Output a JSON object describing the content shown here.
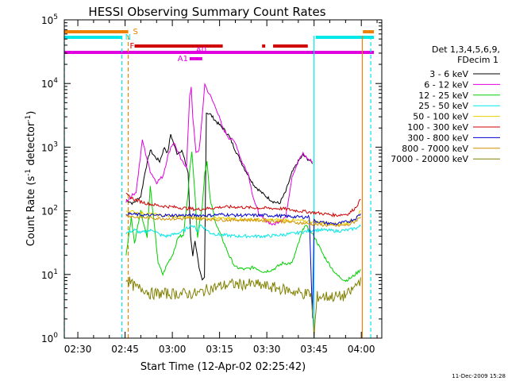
{
  "chart_data": {
    "type": "line",
    "title": "HESSI Observing Summary Count Rates",
    "xlabel": "Start Time (12-Apr-02 02:25:42)",
    "ylabel_main": "Count Rate (s",
    "ylabel_sup1": "-1",
    "ylabel_mid": " detector",
    "ylabel_sup2": "-1",
    "ylabel_end": ")",
    "yscale": "log",
    "ylim_exp": [
      0,
      5
    ],
    "ytick_exps": [
      0,
      1,
      2,
      3,
      4,
      5
    ],
    "ytick_base": "10",
    "xlim_min": [
      25.7,
      126.5
    ],
    "xticks": [
      {
        "min": 30,
        "label": "02:30"
      },
      {
        "min": 45,
        "label": "02:45"
      },
      {
        "min": 60,
        "label": "03:00"
      },
      {
        "min": 75,
        "label": "03:15"
      },
      {
        "min": 90,
        "label": "03:30"
      },
      {
        "min": 105,
        "label": "03:45"
      },
      {
        "min": 120,
        "label": "04:00"
      }
    ],
    "legend_title_1": "Det 1,3,4,5,6,9,",
    "legend_title_2": "FDecim 1",
    "legend_placement": "right",
    "series": [
      {
        "name": "3 - 6 keV",
        "color": "#000000",
        "points": [
          [
            45.3,
            150
          ],
          [
            47.5,
            130
          ],
          [
            50,
            170
          ],
          [
            51.5,
            450
          ],
          [
            53,
            900
          ],
          [
            54.5,
            700
          ],
          [
            56,
            600
          ],
          [
            57.5,
            1000
          ],
          [
            58.5,
            800
          ],
          [
            59.5,
            1600
          ],
          [
            60.5,
            1100
          ],
          [
            61.5,
            800
          ],
          [
            63,
            900
          ],
          [
            65,
            400
          ],
          [
            65.8,
            40
          ],
          [
            66.5,
            20
          ],
          [
            67.2,
            35
          ],
          [
            68.5,
            12
          ],
          [
            69.5,
            8
          ],
          [
            70.2,
            9
          ],
          [
            70.8,
            3500
          ],
          [
            72,
            3300
          ],
          [
            74,
            2500
          ],
          [
            76,
            2000
          ],
          [
            78,
            1500
          ],
          [
            80,
            900
          ],
          [
            83,
            450
          ],
          [
            86,
            250
          ],
          [
            89,
            180
          ],
          [
            92,
            140
          ],
          [
            94,
            130
          ],
          [
            96,
            200
          ],
          [
            98,
            400
          ],
          [
            100,
            600
          ],
          [
            101.5,
            750
          ],
          [
            103.5,
            620
          ],
          [
            104.5,
            550
          ]
        ]
      },
      {
        "name": "6 - 12 keV",
        "color": "#e000e0",
        "points": [
          [
            45.3,
            140
          ],
          [
            47,
            170
          ],
          [
            48.5,
            200
          ],
          [
            49.5,
            500
          ],
          [
            50.5,
            1300
          ],
          [
            51.5,
            800
          ],
          [
            53,
            420
          ],
          [
            55,
            280
          ],
          [
            57,
            350
          ],
          [
            58.5,
            700
          ],
          [
            59.5,
            1000
          ],
          [
            60.5,
            1200
          ],
          [
            61.5,
            900
          ],
          [
            63,
            600
          ],
          [
            64.5,
            500
          ],
          [
            65.5,
            6000
          ],
          [
            66,
            9000
          ],
          [
            66.5,
            3000
          ],
          [
            67.5,
            800
          ],
          [
            68.5,
            900
          ],
          [
            69.5,
            3000
          ],
          [
            70.3,
            10000
          ],
          [
            71,
            8000
          ],
          [
            72,
            6500
          ],
          [
            73,
            5000
          ],
          [
            74,
            4000
          ],
          [
            76,
            2000
          ],
          [
            78,
            1400
          ],
          [
            80,
            1200
          ],
          [
            82,
            600
          ],
          [
            84,
            400
          ],
          [
            85.5,
            180
          ],
          [
            86.5,
            120
          ],
          [
            88,
            80
          ],
          [
            92,
            60
          ],
          [
            96,
            80
          ],
          [
            98,
            350
          ],
          [
            100,
            600
          ],
          [
            101.5,
            800
          ],
          [
            103,
            650
          ],
          [
            104.5,
            600
          ]
        ]
      },
      {
        "name": "12 - 25 keV",
        "color": "#00d000",
        "points": [
          [
            45.3,
            20
          ],
          [
            47,
            80
          ],
          [
            48,
            30
          ],
          [
            49,
            60
          ],
          [
            50,
            100
          ],
          [
            51,
            60
          ],
          [
            52,
            40
          ],
          [
            53,
            240
          ],
          [
            54,
            80
          ],
          [
            55.5,
            15
          ],
          [
            57,
            10
          ],
          [
            58.5,
            15
          ],
          [
            60,
            20
          ],
          [
            62,
            40
          ],
          [
            63.5,
            40
          ],
          [
            65,
            200
          ],
          [
            65.5,
            400
          ],
          [
            66.2,
            900
          ],
          [
            67,
            250
          ],
          [
            68,
            40
          ],
          [
            69.5,
            120
          ],
          [
            70.3,
            400
          ],
          [
            71,
            600
          ],
          [
            72,
            150
          ],
          [
            74,
            60
          ],
          [
            76,
            35
          ],
          [
            78,
            20
          ],
          [
            80,
            13
          ],
          [
            83,
            12
          ],
          [
            86,
            13
          ],
          [
            89,
            11
          ],
          [
            92,
            12
          ],
          [
            95,
            15
          ],
          [
            98,
            15
          ],
          [
            100,
            30
          ],
          [
            102,
            60
          ],
          [
            103.5,
            50
          ],
          [
            105,
            40
          ],
          [
            108,
            20
          ],
          [
            112,
            10
          ],
          [
            115,
            8
          ],
          [
            117,
            9
          ],
          [
            118,
            10
          ],
          [
            119,
            11
          ],
          [
            119.8,
            12
          ]
        ]
      },
      {
        "name": "25 - 50 keV",
        "color": "#00e8e8",
        "points": [
          [
            45.3,
            45
          ],
          [
            48,
            50
          ],
          [
            50,
            45
          ],
          [
            52,
            48
          ],
          [
            54,
            50
          ],
          [
            56,
            42
          ],
          [
            58,
            40
          ],
          [
            60,
            42
          ],
          [
            62,
            45
          ],
          [
            64,
            50
          ],
          [
            66,
            60
          ],
          [
            67,
            55
          ],
          [
            68,
            48
          ],
          [
            69,
            60
          ],
          [
            70,
            55
          ],
          [
            72,
            45
          ],
          [
            75,
            42
          ],
          [
            80,
            40
          ],
          [
            85,
            40
          ],
          [
            90,
            40
          ],
          [
            95,
            42
          ],
          [
            100,
            45
          ],
          [
            103,
            48
          ],
          [
            105,
            50
          ],
          [
            108,
            50
          ],
          [
            112,
            48
          ],
          [
            116,
            50
          ],
          [
            119,
            55
          ],
          [
            119.8,
            58
          ]
        ]
      },
      {
        "name": "50 - 100 keV",
        "color": "#e8d000",
        "points": [
          [
            45.3,
            100
          ],
          [
            48,
            95
          ],
          [
            52,
            90
          ],
          [
            56,
            85
          ],
          [
            60,
            82
          ],
          [
            64,
            80
          ],
          [
            68,
            80
          ],
          [
            72,
            78
          ],
          [
            76,
            75
          ],
          [
            80,
            75
          ],
          [
            85,
            73
          ],
          [
            90,
            72
          ],
          [
            95,
            72
          ],
          [
            100,
            70
          ],
          [
            104,
            68
          ],
          [
            108,
            65
          ],
          [
            112,
            62
          ],
          [
            116,
            65
          ],
          [
            118,
            75
          ],
          [
            119.8,
            100
          ]
        ]
      },
      {
        "name": "100 - 300 keV",
        "color": "#d00000",
        "points": [
          [
            45.3,
            180
          ],
          [
            48,
            150
          ],
          [
            52,
            130
          ],
          [
            56,
            120
          ],
          [
            60,
            115
          ],
          [
            64,
            110
          ],
          [
            68,
            105
          ],
          [
            72,
            110
          ],
          [
            76,
            115
          ],
          [
            80,
            115
          ],
          [
            85,
            112
          ],
          [
            90,
            110
          ],
          [
            95,
            108
          ],
          [
            100,
            100
          ],
          [
            104,
            95
          ],
          [
            108,
            90
          ],
          [
            112,
            85
          ],
          [
            116,
            90
          ],
          [
            118,
            110
          ],
          [
            119.8,
            150
          ]
        ]
      },
      {
        "name": "300 - 800 keV",
        "color": "#0000d0",
        "points": [
          [
            45.3,
            90
          ],
          [
            48,
            88
          ],
          [
            52,
            85
          ],
          [
            56,
            85
          ],
          [
            60,
            85
          ],
          [
            64,
            85
          ],
          [
            68,
            85
          ],
          [
            72,
            85
          ],
          [
            76,
            88
          ],
          [
            80,
            85
          ],
          [
            85,
            85
          ],
          [
            90,
            85
          ],
          [
            95,
            83
          ],
          [
            100,
            80
          ],
          [
            103.5,
            80
          ],
          [
            104.5,
            2
          ],
          [
            105,
            70
          ],
          [
            108,
            65
          ],
          [
            112,
            62
          ],
          [
            116,
            68
          ],
          [
            118,
            75
          ],
          [
            119.8,
            90
          ]
        ]
      },
      {
        "name": "800 - 7000 keV",
        "color": "#d09000",
        "points": [
          [
            45.3,
            85
          ],
          [
            48,
            80
          ],
          [
            52,
            78
          ],
          [
            56,
            76
          ],
          [
            60,
            75
          ],
          [
            64,
            75
          ],
          [
            68,
            75
          ],
          [
            72,
            74
          ],
          [
            76,
            72
          ],
          [
            80,
            72
          ],
          [
            85,
            72
          ],
          [
            90,
            70
          ],
          [
            95,
            68
          ],
          [
            100,
            65
          ],
          [
            104,
            62
          ],
          [
            108,
            60
          ],
          [
            112,
            58
          ],
          [
            116,
            60
          ],
          [
            118,
            68
          ],
          [
            119.8,
            80
          ]
        ]
      },
      {
        "name": "7000 - 20000 keV",
        "color": "#808000",
        "points": [
          [
            45.3,
            9
          ],
          [
            47,
            7
          ],
          [
            49,
            6
          ],
          [
            51,
            6
          ],
          [
            53,
            5
          ],
          [
            55,
            5
          ],
          [
            57,
            5
          ],
          [
            60,
            5
          ],
          [
            63,
            5
          ],
          [
            66,
            5
          ],
          [
            68,
            5
          ],
          [
            70,
            5.5
          ],
          [
            72,
            6
          ],
          [
            75,
            6.5
          ],
          [
            78,
            7
          ],
          [
            82,
            7
          ],
          [
            86,
            7
          ],
          [
            90,
            6.5
          ],
          [
            94,
            6
          ],
          [
            98,
            5.5
          ],
          [
            101,
            5
          ],
          [
            104,
            5
          ],
          [
            105,
            1.1
          ],
          [
            106,
            4.5
          ],
          [
            108,
            4.5
          ],
          [
            111,
            4.5
          ],
          [
            114,
            4.5
          ],
          [
            116,
            5
          ],
          [
            117.5,
            6
          ],
          [
            118.5,
            7
          ],
          [
            119.5,
            8
          ],
          [
            119.8,
            9
          ]
        ]
      }
    ],
    "flag_bars": [
      {
        "label": "S",
        "color": "#f08000",
        "row": "S",
        "segments": [
          [
            25.7,
            46
          ],
          [
            120.5,
            124
          ]
        ]
      },
      {
        "label": "N",
        "color": "#00e8e8",
        "row": "N",
        "segments": [
          [
            25.7,
            44
          ],
          [
            105.5,
            124
          ]
        ]
      },
      {
        "label": "F",
        "color": "#d00000",
        "row": "F",
        "segments": [
          [
            48,
            76
          ],
          [
            88.5,
            89.5
          ],
          [
            92,
            103
          ]
        ]
      },
      {
        "label": "",
        "color": "#e000e0",
        "row": "M",
        "segments": [
          [
            25.7,
            124
          ]
        ]
      },
      {
        "label": "A0",
        "color": "#e000e0",
        "row": "A0",
        "segments": []
      },
      {
        "label": "A1",
        "color": "#e000e0",
        "row": "A1",
        "segments": [
          [
            65.5,
            69.5
          ]
        ]
      }
    ],
    "vertical_lines": [
      {
        "min": 25.7,
        "color": "#00e8e8",
        "style": "dashed"
      },
      {
        "min": 46,
        "color": "#f08000",
        "style": "dashed"
      },
      {
        "min": 44,
        "color": "#00e8e8",
        "style": "dashed"
      },
      {
        "min": 105,
        "color": "#00e8e8",
        "style": "solid"
      },
      {
        "min": 120.3,
        "color": "#f08000",
        "style": "solid"
      },
      {
        "min": 123,
        "color": "#00e8e8",
        "style": "dashed"
      }
    ],
    "footer_date": "11-Dec-2009 15:28"
  }
}
